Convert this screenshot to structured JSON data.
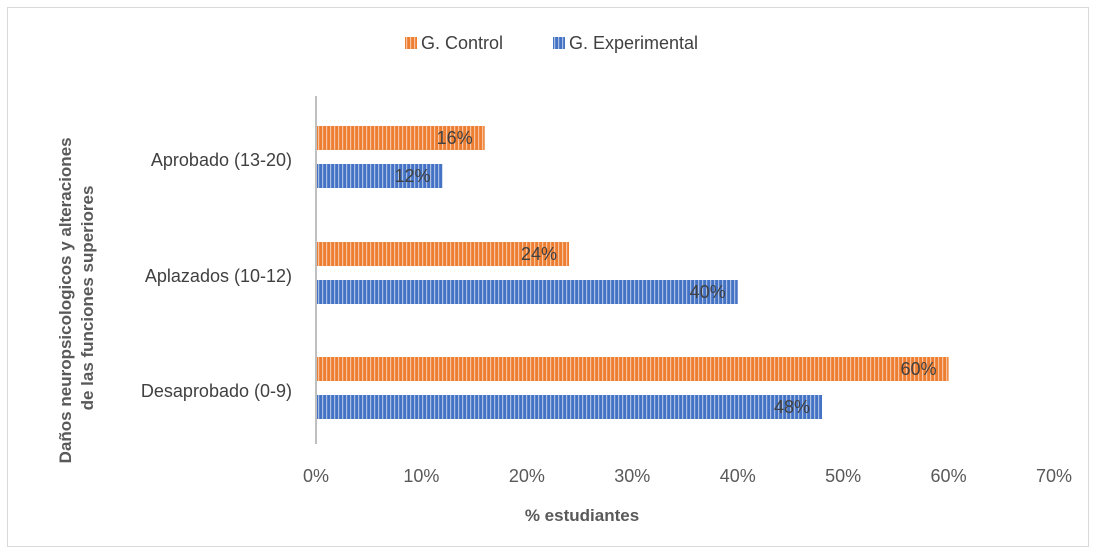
{
  "chart_data": {
    "type": "bar",
    "orientation": "horizontal",
    "categories": [
      "Aprobado (13-20)",
      "Aplazados (10-12)",
      "Desaprobado (0-9)"
    ],
    "series": [
      {
        "name": "G. Control",
        "values": [
          16,
          24,
          60
        ],
        "labels": [
          "16%",
          "24%",
          "60%"
        ],
        "color": "#ED7D31"
      },
      {
        "name": "G. Experimental",
        "values": [
          12,
          40,
          48
        ],
        "labels": [
          "12%",
          "40%",
          "48%"
        ],
        "color": "#4472C4"
      }
    ],
    "xlabel": "% estudiantes",
    "ylabel_lines": [
      "Daños  neuropsicologicos y alteraciones",
      "de las funciones  superiores"
    ],
    "xlim": [
      0,
      70
    ],
    "xticks": [
      0,
      10,
      20,
      30,
      40,
      50,
      60,
      70
    ],
    "xtick_labels": [
      "0%",
      "10%",
      "20%",
      "30%",
      "40%",
      "50%",
      "60%",
      "70%"
    ],
    "grid": false,
    "legend_position": "top"
  }
}
